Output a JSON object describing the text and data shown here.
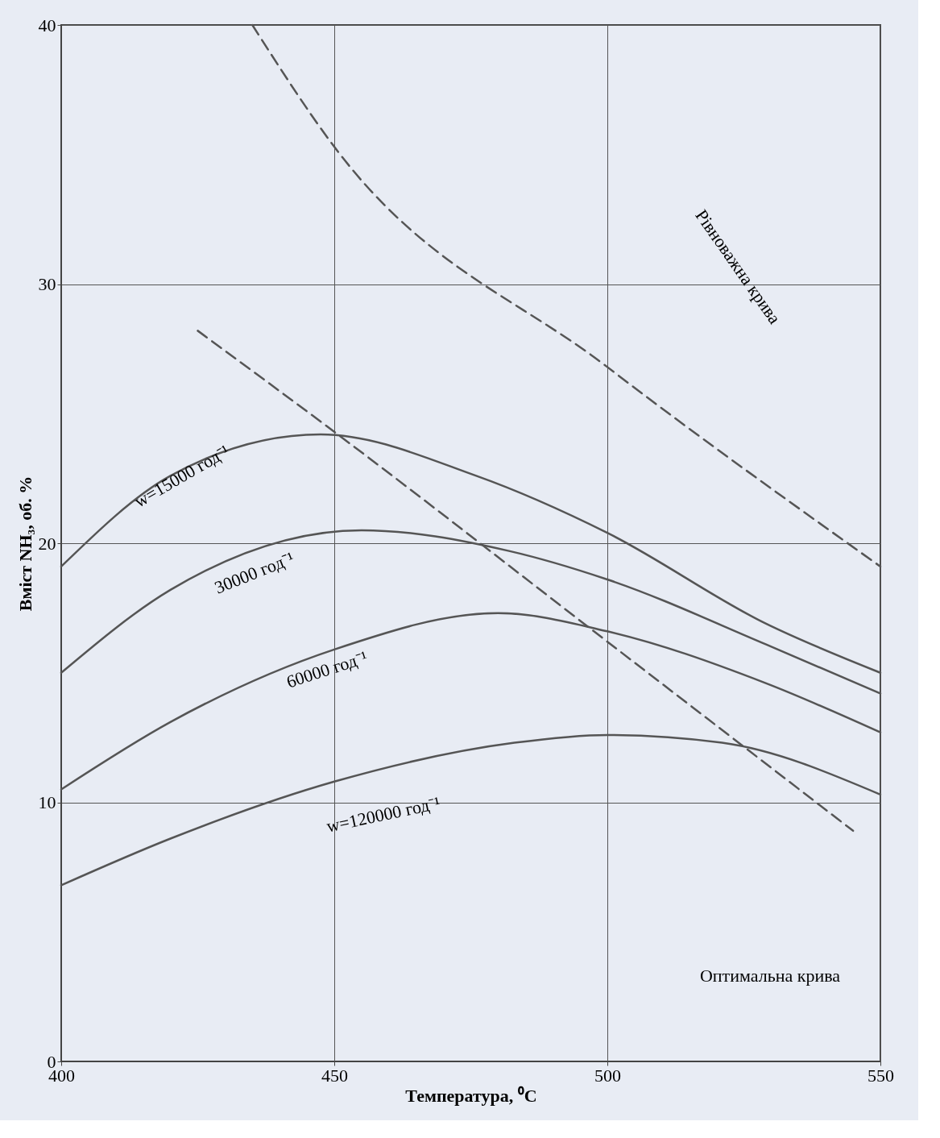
{
  "chart_data": {
    "type": "line",
    "xlabel": "Температура, ⁰C",
    "ylabel": "Вміст NH₃, об. %",
    "xlim": [
      400,
      550
    ],
    "xticks": [
      400,
      450,
      500,
      550
    ],
    "ylim": [
      0,
      40
    ],
    "yticks": [
      0,
      10,
      20,
      30,
      40
    ],
    "grid": true,
    "series": [
      {
        "color": "#555555",
        "line_style": "solid",
        "x": [
          400,
          420,
          447.5,
          476,
          500,
          529,
          550
        ],
        "values": [
          19.1,
          22.6,
          24.2,
          22.6,
          20.4,
          16.9,
          15.0
        ]
      },
      {
        "color": "#555555",
        "line_style": "solid",
        "x": [
          400,
          420,
          455,
          482,
          500,
          529,
          550
        ],
        "values": [
          15.0,
          18.2,
          20.5,
          19.7,
          18.6,
          16.1,
          14.2
        ]
      },
      {
        "color": "#555555",
        "line_style": "solid",
        "x": [
          400,
          420,
          450,
          480,
          500,
          529,
          550
        ],
        "values": [
          10.5,
          13.1,
          15.9,
          17.3,
          16.6,
          14.6,
          12.7
        ]
      },
      {
        "color": "#555555",
        "line_style": "solid",
        "x": [
          400,
          420,
          450,
          483,
          500,
          521,
          550
        ],
        "values": [
          6.8,
          8.6,
          10.8,
          12.3,
          12.6,
          12.3,
          10.3
        ]
      },
      {
        "color": "#555555",
        "line_style": "dashed",
        "x": [
          435,
          450,
          500,
          550
        ],
        "values": [
          40,
          35.3,
          26.8,
          19.1
        ]
      },
      {
        "color": "#555555",
        "line_style": "dashed",
        "x": [
          425,
          450,
          500,
          545
        ],
        "values": [
          28.2,
          24.3,
          16.2,
          8.9
        ]
      }
    ],
    "annotations": [
      "w=15000 год⁻¹",
      "30000 год⁻¹",
      "60000 год⁻¹",
      "w=120000 год⁻¹",
      "Рівноважна крива",
      "Оптимальна крива"
    ]
  }
}
